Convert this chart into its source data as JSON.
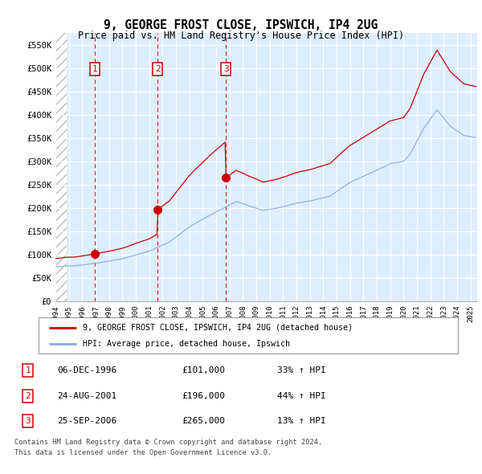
{
  "title": "9, GEORGE FROST CLOSE, IPSWICH, IP4 2UG",
  "subtitle": "Price paid vs. HM Land Registry's House Price Index (HPI)",
  "ylabel_ticks": [
    "£0",
    "£50K",
    "£100K",
    "£150K",
    "£200K",
    "£250K",
    "£300K",
    "£350K",
    "£400K",
    "£450K",
    "£500K",
    "£550K"
  ],
  "ytick_values": [
    0,
    50000,
    100000,
    150000,
    200000,
    250000,
    300000,
    350000,
    400000,
    450000,
    500000,
    550000
  ],
  "ylim": [
    0,
    575000
  ],
  "xlim_start": 1994.0,
  "xlim_end": 2025.5,
  "transactions": [
    {
      "year": 1996.92,
      "price": 101000,
      "label": "1"
    },
    {
      "year": 2001.64,
      "price": 196000,
      "label": "2"
    },
    {
      "year": 2006.73,
      "price": 265000,
      "label": "3"
    }
  ],
  "transaction_table": [
    {
      "num": "1",
      "date": "06-DEC-1996",
      "price": "£101,000",
      "change": "33% ↑ HPI"
    },
    {
      "num": "2",
      "date": "24-AUG-2001",
      "price": "£196,000",
      "change": "44% ↑ HPI"
    },
    {
      "num": "3",
      "date": "25-SEP-2006",
      "price": "£265,000",
      "change": "13% ↑ HPI"
    }
  ],
  "legend_line1": "9, GEORGE FROST CLOSE, IPSWICH, IP4 2UG (detached house)",
  "legend_line2": "HPI: Average price, detached house, Ipswich",
  "footer1": "Contains HM Land Registry data © Crown copyright and database right 2024.",
  "footer2": "This data is licensed under the Open Government Licence v3.0.",
  "red_color": "#cc0000",
  "blue_color": "#88aadd",
  "bg_color": "#ddeeff",
  "grid_color": "#ffffff",
  "vline_color": "#cc0000"
}
